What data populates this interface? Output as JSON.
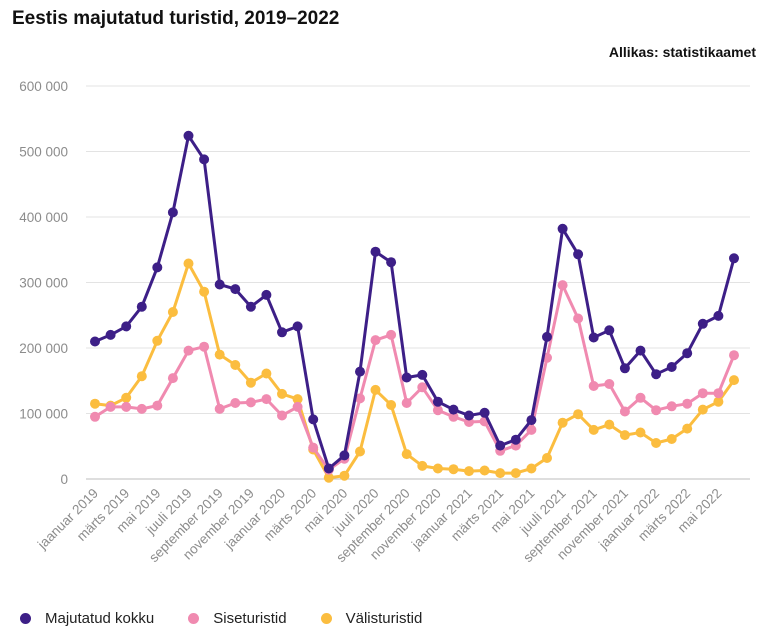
{
  "header": {
    "title": "Eestis majutatud turistid, 2019–2022",
    "source": "Allikas: statistikaamet"
  },
  "chart_data": {
    "type": "line",
    "title": "Eestis majutatud turistid, 2019–2022",
    "xlabel": "",
    "ylabel": "",
    "ylim": [
      0,
      600000
    ],
    "yticks": [
      {
        "value": 0,
        "label": "0"
      },
      {
        "value": 100000,
        "label": "100 000"
      },
      {
        "value": 200000,
        "label": "200 000"
      },
      {
        "value": 300000,
        "label": "300 000"
      },
      {
        "value": 400000,
        "label": "400 000"
      },
      {
        "value": 500000,
        "label": "500 000"
      },
      {
        "value": 600000,
        "label": "600 000"
      }
    ],
    "grid": true,
    "legend_position": "bottom-left",
    "x": [
      "2019-01",
      "2019-02",
      "2019-03",
      "2019-04",
      "2019-05",
      "2019-06",
      "2019-07",
      "2019-08",
      "2019-09",
      "2019-10",
      "2019-11",
      "2019-12",
      "2020-01",
      "2020-02",
      "2020-03",
      "2020-04",
      "2020-05",
      "2020-06",
      "2020-07",
      "2020-08",
      "2020-09",
      "2020-10",
      "2020-11",
      "2020-12",
      "2021-01",
      "2021-02",
      "2021-03",
      "2021-04",
      "2021-05",
      "2021-06",
      "2021-07",
      "2021-08",
      "2021-09",
      "2021-10",
      "2021-11",
      "2021-12",
      "2022-01",
      "2022-02",
      "2022-03",
      "2022-04",
      "2022-05",
      "2022-06"
    ],
    "xtick_labels": [
      {
        "index": 0,
        "label": "jaanuar 2019"
      },
      {
        "index": 2,
        "label": "märts 2019"
      },
      {
        "index": 4,
        "label": "mai 2019"
      },
      {
        "index": 6,
        "label": "juuli 2019"
      },
      {
        "index": 8,
        "label": "september 2019"
      },
      {
        "index": 10,
        "label": "november 2019"
      },
      {
        "index": 12,
        "label": "jaanuar 2020"
      },
      {
        "index": 14,
        "label": "märts 2020"
      },
      {
        "index": 16,
        "label": "mai 2020"
      },
      {
        "index": 18,
        "label": "juuli 2020"
      },
      {
        "index": 20,
        "label": "september 2020"
      },
      {
        "index": 22,
        "label": "november 2020"
      },
      {
        "index": 24,
        "label": "jaanuar 2021"
      },
      {
        "index": 26,
        "label": "märts 2021"
      },
      {
        "index": 28,
        "label": "mai 2021"
      },
      {
        "index": 30,
        "label": "juuli 2021"
      },
      {
        "index": 32,
        "label": "september 2021"
      },
      {
        "index": 34,
        "label": "november 2021"
      },
      {
        "index": 36,
        "label": "jaanuar 2022"
      },
      {
        "index": 38,
        "label": "märts 2022"
      },
      {
        "index": 40,
        "label": "mai 2022"
      }
    ],
    "series": [
      {
        "name": "Majutatud kokku",
        "color": "#3d1f87",
        "values": [
          210000,
          220000,
          233000,
          263000,
          323000,
          407000,
          524000,
          488000,
          297000,
          290000,
          263000,
          281000,
          224000,
          233000,
          91000,
          16000,
          36000,
          164000,
          347000,
          331000,
          155000,
          159000,
          118000,
          106000,
          97000,
          101000,
          51000,
          60000,
          90000,
          217000,
          382000,
          343000,
          216000,
          227000,
          169000,
          196000,
          160000,
          171000,
          192000,
          237000,
          249000,
          337000
        ]
      },
      {
        "name": "Siseturistid",
        "color": "#f08ab0",
        "values": [
          95000,
          110000,
          110000,
          107000,
          112000,
          154000,
          196000,
          202000,
          107000,
          116000,
          117000,
          122000,
          97000,
          110000,
          48000,
          14000,
          31000,
          123000,
          212000,
          220000,
          116000,
          140000,
          105000,
          95000,
          87000,
          88000,
          43000,
          51000,
          75000,
          185000,
          296000,
          245000,
          142000,
          145000,
          103000,
          124000,
          105000,
          111000,
          115000,
          131000,
          131000,
          189000
        ]
      },
      {
        "name": "Välisturistid",
        "color": "#fbbd3f",
        "values": [
          115000,
          112000,
          124000,
          157000,
          211000,
          255000,
          329000,
          286000,
          190000,
          174000,
          147000,
          161000,
          130000,
          122000,
          45000,
          2000,
          5000,
          42000,
          136000,
          113000,
          38000,
          20000,
          16000,
          15000,
          12000,
          13000,
          9000,
          9000,
          16000,
          32000,
          86000,
          99000,
          75000,
          83000,
          67000,
          71000,
          55000,
          61000,
          77000,
          106000,
          118000,
          151000
        ]
      }
    ]
  }
}
